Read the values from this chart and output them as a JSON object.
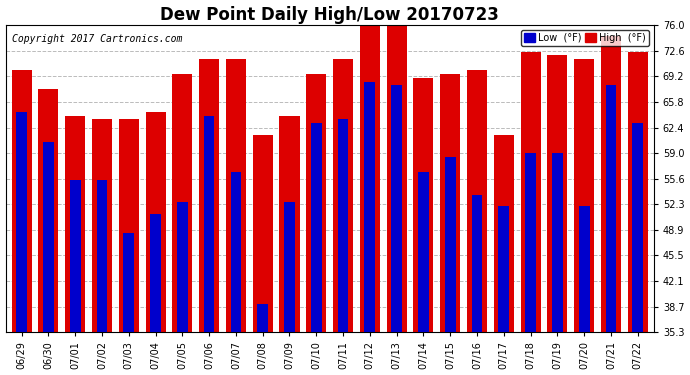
{
  "title": "Dew Point Daily High/Low 20170723",
  "copyright": "Copyright 2017 Cartronics.com",
  "legend_low_label": "Low  (°F)",
  "legend_high_label": "High  (°F)",
  "dates": [
    "06/29",
    "06/30",
    "07/01",
    "07/02",
    "07/03",
    "07/04",
    "07/05",
    "07/06",
    "07/07",
    "07/08",
    "07/09",
    "07/10",
    "07/11",
    "07/12",
    "07/13",
    "07/14",
    "07/15",
    "07/16",
    "07/17",
    "07/18",
    "07/19",
    "07/20",
    "07/21",
    "07/22"
  ],
  "low_values": [
    64.5,
    60.5,
    55.5,
    55.5,
    48.5,
    51.0,
    52.5,
    64.0,
    56.5,
    39.0,
    52.5,
    63.0,
    63.5,
    68.5,
    68.0,
    56.5,
    58.5,
    53.5,
    52.0,
    59.0,
    59.0,
    52.0,
    68.0,
    63.0
  ],
  "high_values": [
    70.0,
    67.5,
    64.0,
    63.5,
    63.5,
    64.5,
    69.5,
    71.5,
    71.5,
    61.5,
    64.0,
    69.5,
    71.5,
    76.5,
    76.0,
    69.0,
    69.5,
    70.0,
    61.5,
    72.5,
    72.0,
    71.5,
    74.5,
    72.5
  ],
  "ymin": 35.3,
  "ymax": 76.0,
  "yticks": [
    35.3,
    38.7,
    42.1,
    45.5,
    48.9,
    52.3,
    55.6,
    59.0,
    62.4,
    65.8,
    69.2,
    72.6,
    76.0
  ],
  "low_color": "#0000cc",
  "high_color": "#dd0000",
  "bg_color": "#ffffff",
  "grid_color": "#bbbbbb",
  "title_fontsize": 12,
  "tick_fontsize": 7,
  "copyright_fontsize": 7
}
